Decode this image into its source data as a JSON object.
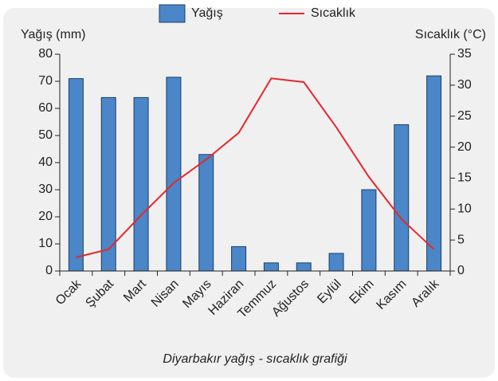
{
  "chart_data": {
    "type": "bar_line",
    "caption": "Diyarbakır yağış - sıcaklık grafiği",
    "y_label": "Yağış (mm)",
    "y2_label": "Sıcaklık (°C)",
    "categories": [
      "Ocak",
      "Şubat",
      "Mart",
      "Nisan",
      "Mayıs",
      "Haziran",
      "Temmuz",
      "Ağustos",
      "Eylül",
      "Ekim",
      "Kasım",
      "Aralık"
    ],
    "series": [
      {
        "name": "Yağış",
        "kind": "bar",
        "color": "#4a86c8",
        "values": [
          71,
          64,
          64,
          71.5,
          43,
          9,
          3,
          3,
          6.5,
          30,
          54,
          72
        ]
      },
      {
        "name": "Sıcaklık",
        "kind": "line",
        "axis": "y2",
        "color": "#e8262b",
        "values": [
          2.2,
          3.5,
          9,
          14.2,
          18,
          22.3,
          31.1,
          30.5,
          23.2,
          15.2,
          8.4,
          3.5
        ]
      }
    ],
    "ylim": [
      0,
      80
    ],
    "yticks": [
      0,
      10,
      20,
      30,
      40,
      50,
      60,
      70,
      80
    ],
    "y2lim": [
      0,
      35
    ],
    "y2ticks": [
      0,
      5,
      10,
      15,
      20,
      25,
      30,
      35
    ],
    "legend": "top"
  }
}
